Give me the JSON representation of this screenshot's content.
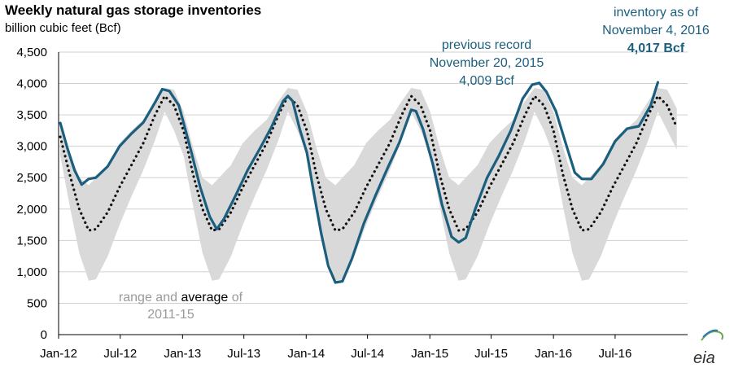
{
  "chart_data": {
    "type": "line",
    "title": "Weekly natural gas storage inventories",
    "subtitle": "billion cubic feet (Bcf)",
    "ylim": [
      0,
      4500
    ],
    "yticks": [
      0,
      500,
      1000,
      1500,
      2000,
      2500,
      3000,
      3500,
      4000,
      4500
    ],
    "ytick_labels": [
      "0",
      "500",
      "1,000",
      "1,500",
      "2,000",
      "2,500",
      "3,000",
      "3,500",
      "4,000",
      "4,500"
    ],
    "xlim": [
      "2012-01-01",
      "2017-01-31"
    ],
    "xticks": [
      "2012-01-01",
      "2012-07-01",
      "2013-01-01",
      "2013-07-01",
      "2014-01-01",
      "2014-07-01",
      "2015-01-01",
      "2015-07-01",
      "2016-01-01",
      "2016-07-01"
    ],
    "xtick_labels": [
      "Jan-12",
      "Jul-12",
      "Jan-13",
      "Jul-13",
      "Jan-14",
      "Jul-14",
      "Jan-15",
      "Jul-15",
      "Jan-16",
      "Jul-16"
    ],
    "grid": "horizontal",
    "series": [
      {
        "name": "inventory",
        "color": "#1b5e7e",
        "style": "solid",
        "x": [
          "2012-01-06",
          "2012-01-27",
          "2012-02-17",
          "2012-03-09",
          "2012-03-30",
          "2012-04-20",
          "2012-05-25",
          "2012-06-29",
          "2012-08-03",
          "2012-09-07",
          "2012-10-12",
          "2012-11-02",
          "2012-11-23",
          "2012-12-21",
          "2013-01-25",
          "2013-02-22",
          "2013-03-22",
          "2013-04-12",
          "2013-05-03",
          "2013-06-07",
          "2013-07-12",
          "2013-08-16",
          "2013-09-20",
          "2013-10-25",
          "2013-11-08",
          "2013-11-22",
          "2013-12-13",
          "2014-01-03",
          "2014-01-24",
          "2014-02-14",
          "2014-03-07",
          "2014-03-28",
          "2014-04-18",
          "2014-05-16",
          "2014-06-20",
          "2014-07-25",
          "2014-08-29",
          "2014-10-03",
          "2014-11-07",
          "2014-11-21",
          "2014-12-12",
          "2015-01-09",
          "2015-02-06",
          "2015-03-06",
          "2015-03-27",
          "2015-04-17",
          "2015-05-15",
          "2015-06-19",
          "2015-07-24",
          "2015-08-28",
          "2015-10-02",
          "2015-10-30",
          "2015-11-20",
          "2015-12-11",
          "2016-01-08",
          "2016-02-05",
          "2016-03-04",
          "2016-03-25",
          "2016-04-22",
          "2016-05-27",
          "2016-07-01",
          "2016-08-05",
          "2016-09-09",
          "2016-10-14",
          "2016-11-04"
        ],
        "y": [
          3370,
          2970,
          2620,
          2390,
          2480,
          2500,
          2680,
          3000,
          3200,
          3380,
          3700,
          3910,
          3880,
          3650,
          2950,
          2350,
          1880,
          1680,
          1840,
          2220,
          2620,
          2950,
          3300,
          3720,
          3800,
          3720,
          3270,
          2900,
          2240,
          1620,
          1100,
          830,
          850,
          1210,
          1770,
          2220,
          2650,
          3060,
          3580,
          3560,
          3270,
          2730,
          2070,
          1560,
          1470,
          1540,
          2000,
          2500,
          2850,
          3250,
          3760,
          3980,
          4009,
          3870,
          3560,
          3070,
          2580,
          2480,
          2480,
          2720,
          3080,
          3280,
          3320,
          3650,
          4017
        ]
      },
      {
        "name": "average 2011-15",
        "color": "#111111",
        "style": "dotted",
        "x": [
          "2012-01-06",
          "2012-02-03",
          "2012-03-02",
          "2012-03-30",
          "2012-04-20",
          "2012-05-25",
          "2012-06-29",
          "2012-08-03",
          "2012-09-07",
          "2012-10-12",
          "2012-11-09",
          "2012-12-07",
          "2013-01-04",
          "2013-02-01",
          "2013-03-01",
          "2013-03-29",
          "2013-04-19",
          "2013-05-24",
          "2013-06-28",
          "2013-08-02",
          "2013-09-06",
          "2013-10-11",
          "2013-11-08",
          "2013-12-06",
          "2014-01-03",
          "2014-01-31",
          "2014-02-28",
          "2014-03-28",
          "2014-04-18",
          "2014-05-23",
          "2014-06-27",
          "2014-08-01",
          "2014-09-05",
          "2014-10-10",
          "2014-11-07",
          "2014-12-05",
          "2015-01-02",
          "2015-01-30",
          "2015-02-27",
          "2015-03-27",
          "2015-04-17",
          "2015-05-22",
          "2015-06-26",
          "2015-07-31",
          "2015-09-04",
          "2015-10-09",
          "2015-11-06",
          "2015-12-04",
          "2016-01-01",
          "2016-01-29",
          "2016-02-26",
          "2016-03-25",
          "2016-04-15",
          "2016-05-20",
          "2016-06-24",
          "2016-07-29",
          "2016-09-02",
          "2016-10-07",
          "2016-11-04",
          "2016-12-02",
          "2016-12-30"
        ],
        "y": [
          3150,
          2550,
          2000,
          1660,
          1680,
          1950,
          2350,
          2700,
          3050,
          3500,
          3800,
          3650,
          3250,
          2550,
          2000,
          1660,
          1680,
          1950,
          2350,
          2700,
          3050,
          3500,
          3800,
          3650,
          3250,
          2550,
          2000,
          1660,
          1680,
          1950,
          2350,
          2700,
          3050,
          3500,
          3800,
          3650,
          3250,
          2550,
          2000,
          1660,
          1680,
          1950,
          2350,
          2700,
          3050,
          3500,
          3800,
          3650,
          3250,
          2550,
          2000,
          1660,
          1680,
          1950,
          2350,
          2700,
          3050,
          3500,
          3800,
          3650,
          3300
        ]
      }
    ],
    "range_band": {
      "name": "range 2011-15",
      "color": "#d9d9d9",
      "x": [
        "2012-01-06",
        "2012-02-03",
        "2012-03-02",
        "2012-03-30",
        "2012-04-20",
        "2012-05-25",
        "2012-06-29",
        "2012-08-03",
        "2012-09-07",
        "2012-10-12",
        "2012-11-09",
        "2012-12-07",
        "2013-01-04",
        "2013-02-01",
        "2013-03-01",
        "2013-03-29",
        "2013-04-19",
        "2013-05-24",
        "2013-06-28",
        "2013-08-02",
        "2013-09-06",
        "2013-10-11",
        "2013-11-08",
        "2013-12-06",
        "2014-01-03",
        "2014-01-31",
        "2014-02-28",
        "2014-03-28",
        "2014-04-18",
        "2014-05-23",
        "2014-06-27",
        "2014-08-01",
        "2014-09-05",
        "2014-10-10",
        "2014-11-07",
        "2014-12-05",
        "2015-01-02",
        "2015-01-30",
        "2015-02-27",
        "2015-03-27",
        "2015-04-17",
        "2015-05-22",
        "2015-06-26",
        "2015-07-31",
        "2015-09-04",
        "2015-10-09",
        "2015-11-06",
        "2015-12-04",
        "2016-01-01",
        "2016-01-29",
        "2016-02-26",
        "2016-03-25",
        "2016-04-15",
        "2016-05-20",
        "2016-06-24",
        "2016-07-29",
        "2016-09-02",
        "2016-10-07",
        "2016-11-04",
        "2016-12-02",
        "2016-12-30"
      ],
      "high": [
        3400,
        2900,
        2500,
        2380,
        2500,
        2700,
        3050,
        3250,
        3420,
        3720,
        3930,
        3900,
        3550,
        2980,
        2500,
        2380,
        2500,
        2700,
        3050,
        3250,
        3420,
        3720,
        3930,
        3900,
        3550,
        2980,
        2500,
        2380,
        2500,
        2700,
        3050,
        3250,
        3420,
        3720,
        3930,
        3900,
        3550,
        2980,
        2500,
        2380,
        2500,
        2700,
        3050,
        3250,
        3420,
        3720,
        3930,
        3900,
        3550,
        2980,
        2500,
        2380,
        2500,
        2700,
        3050,
        3250,
        3420,
        3720,
        3930,
        3900,
        3600
      ],
      "low": [
        2850,
        2050,
        1300,
        860,
        880,
        1250,
        1750,
        2200,
        2620,
        3100,
        3550,
        3250,
        2850,
        2050,
        1300,
        860,
        880,
        1250,
        1750,
        2200,
        2620,
        3100,
        3550,
        3250,
        2850,
        2050,
        1300,
        860,
        880,
        1250,
        1750,
        2200,
        2620,
        3100,
        3550,
        3250,
        2850,
        2050,
        1300,
        860,
        880,
        1250,
        1750,
        2200,
        2620,
        3100,
        3550,
        3250,
        2850,
        2050,
        1300,
        860,
        880,
        1250,
        1750,
        2200,
        2620,
        3100,
        3550,
        3250,
        2950
      ]
    },
    "annotations": [
      {
        "lines": [
          "previous record",
          "November 20, 2015",
          "4,009 Bcf"
        ],
        "bold_last": false
      },
      {
        "lines": [
          "inventory as of",
          "November 4, 2016",
          "4,017 Bcf"
        ],
        "bold_last": true
      }
    ],
    "legend_text": {
      "range": "range",
      "and": "and",
      "average": "average",
      "of": "of",
      "years": "2011-15"
    },
    "source_logo": "eia"
  }
}
